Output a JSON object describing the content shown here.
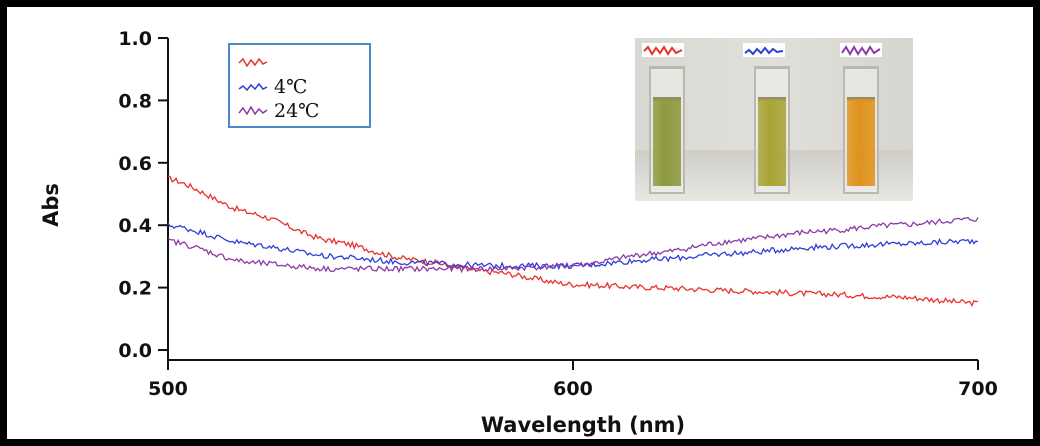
{
  "chart_data": {
    "type": "line",
    "xlabel": "Wavelength (nm)",
    "ylabel": "Abs",
    "xlim": [
      500,
      700
    ],
    "ylim": [
      0.0,
      1.0
    ],
    "x_ticks": [
      "500",
      "600",
      "700"
    ],
    "y_ticks": [
      "0.0",
      "0.2",
      "0.4",
      "0.6",
      "0.8",
      "1.0"
    ],
    "x": [
      500,
      520,
      540,
      560,
      580,
      600,
      620,
      640,
      660,
      680,
      700
    ],
    "series": [
      {
        "color": "#e8322d",
        "values": [
          0.55,
          0.44,
          0.35,
          0.29,
          0.25,
          0.21,
          0.2,
          0.19,
          0.18,
          0.17,
          0.15
        ]
      },
      {
        "name": "4℃",
        "color": "#2d3fd8",
        "values": [
          0.4,
          0.34,
          0.3,
          0.28,
          0.27,
          0.27,
          0.29,
          0.31,
          0.33,
          0.34,
          0.35
        ]
      },
      {
        "name": "24℃",
        "color": "#8b3aa8",
        "values": [
          0.35,
          0.28,
          0.26,
          0.26,
          0.26,
          0.27,
          0.31,
          0.35,
          0.38,
          0.4,
          0.42
        ]
      }
    ],
    "legend": {
      "placement": "top-left",
      "entries": [
        "",
        "4℃",
        "24℃"
      ]
    },
    "grid": false
  },
  "inset_photo": {
    "subject": "three cuvettes",
    "liquid_colors": [
      "#8e9a3e",
      "#a8a436",
      "#e0921a"
    ],
    "swatch_colors": [
      "#e8322d",
      "#2d3fd8",
      "#8b3aa8"
    ]
  }
}
